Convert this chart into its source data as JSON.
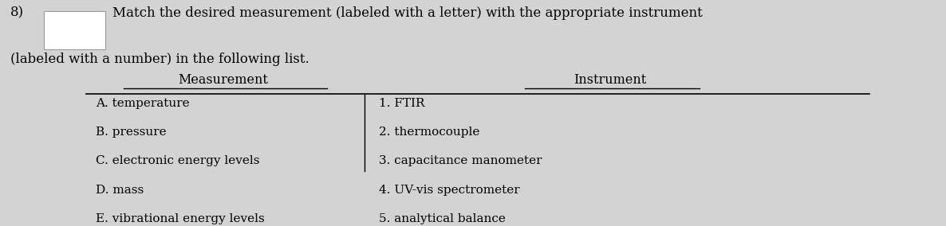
{
  "question_number": "8)",
  "intro_line1": "Match the desired measurement (labeled with a letter) with the appropriate instrument",
  "intro_line2": "(labeled with a number) in the following list.",
  "col1_header": "Measurement",
  "col2_header": "Instrument",
  "measurements": [
    "A. temperature",
    "B. pressure",
    "C. electronic energy levels",
    "D. mass",
    "E. vibrational energy levels"
  ],
  "instruments": [
    "1. FTIR",
    "2. thermocouple",
    "3. capacitance manometer",
    "4. UV-vis spectrometer",
    "5. analytical balance"
  ],
  "bg_color": "#d3d3d3",
  "text_color": "#000000",
  "font_size": 11,
  "header_font_size": 11.5,
  "intro_font_size": 12
}
